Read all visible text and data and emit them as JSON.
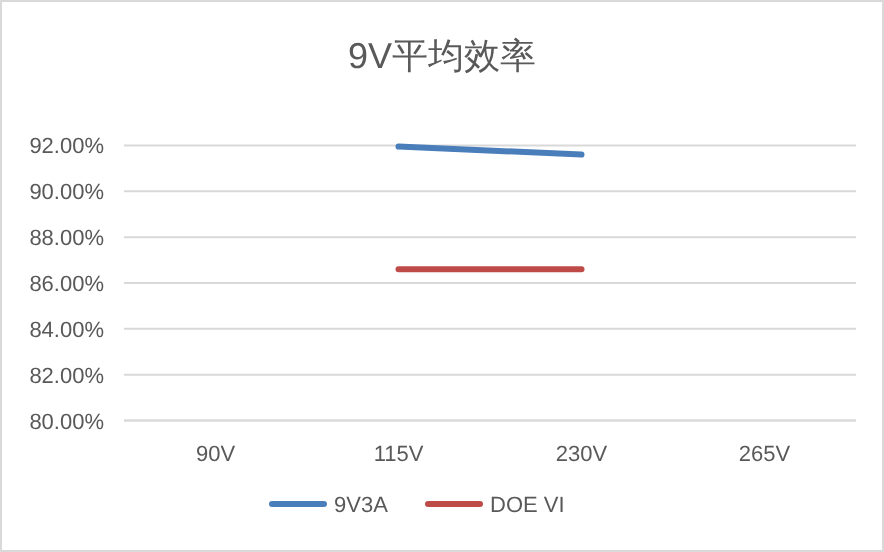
{
  "chart_data": {
    "type": "line",
    "title": "9V平均效率",
    "categories": [
      "90V",
      "115V",
      "230V",
      "265V"
    ],
    "series": [
      {
        "name": "9V3A",
        "color": "#4a7ebb",
        "values": [
          null,
          91.95,
          91.6,
          null
        ]
      },
      {
        "name": "DOE VI",
        "color": "#be4b48",
        "values": [
          null,
          86.6,
          86.6,
          null
        ]
      }
    ],
    "ylim": [
      80,
      92
    ],
    "yticks": [
      {
        "value": 80,
        "label": "80.00%"
      },
      {
        "value": 82,
        "label": "82.00%"
      },
      {
        "value": 84,
        "label": "84.00%"
      },
      {
        "value": 86,
        "label": "86.00%"
      },
      {
        "value": 88,
        "label": "88.00%"
      },
      {
        "value": 90,
        "label": "90.00%"
      },
      {
        "value": 92,
        "label": "92.00%"
      }
    ],
    "grid": "y",
    "legend": "bottom"
  }
}
